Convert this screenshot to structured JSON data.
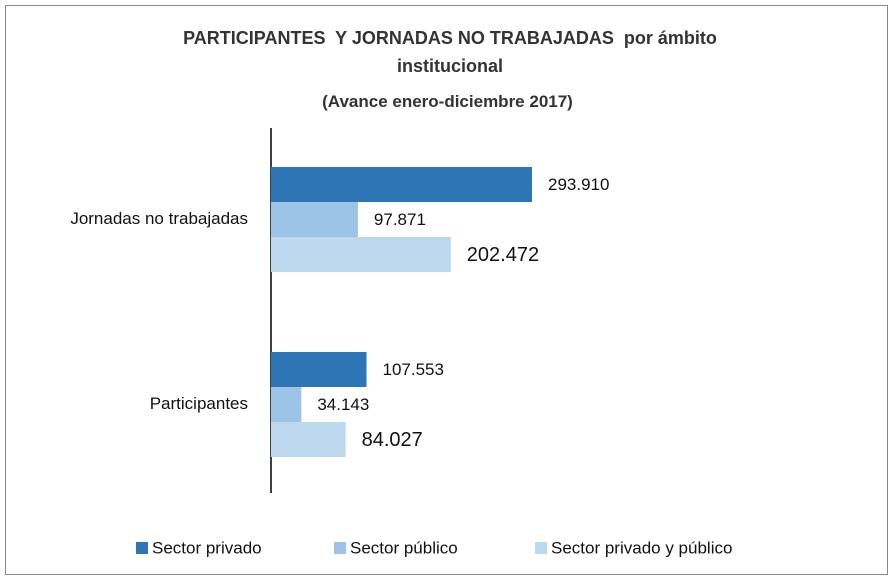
{
  "chart_data": {
    "type": "hbar",
    "title": "PARTICIPANTES  Y JORNADAS NO TRABAJADAS  por ámbito institucional",
    "subtitle": "(Avance enero-diciembre 2017)",
    "categories": [
      "Jornadas no trabajadas",
      "Participantes"
    ],
    "series": [
      {
        "name": "Sector privado",
        "color": "#2e75b6",
        "values": [
          293910,
          107553
        ],
        "value_labels": [
          "293.910",
          "107.553"
        ]
      },
      {
        "name": "Sector público",
        "color": "#9dc3e6",
        "values": [
          97871,
          34143
        ],
        "value_labels": [
          "97.871",
          "34.143"
        ]
      },
      {
        "name": "Sector privado y público",
        "color": "#bdd7ee",
        "values": [
          202472,
          84027
        ],
        "value_labels": [
          "202.472",
          "84.027"
        ]
      }
    ],
    "legend": "bottom"
  }
}
